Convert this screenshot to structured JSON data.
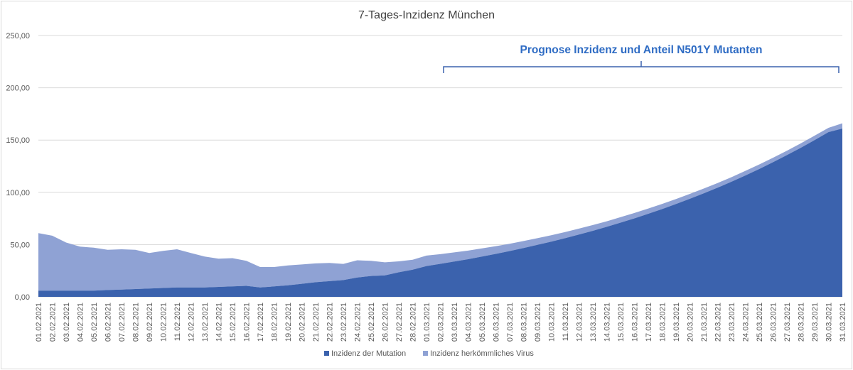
{
  "chart_data": {
    "type": "area",
    "stacked": true,
    "title": "7-Tages-Inzidenz München",
    "annotation": "Prognose Inzidenz und Anteil N501Y Mutanten",
    "xlabel": "",
    "ylabel": "",
    "ylim": [
      0,
      250
    ],
    "yticks": [
      "0,00",
      "50,00",
      "100,00",
      "150,00",
      "200,00",
      "250,00"
    ],
    "grid": true,
    "legend_position": "bottom",
    "categories": [
      "01.02.2021",
      "02.02.2021",
      "03.02.2021",
      "04.02.2021",
      "05.02.2021",
      "06.02.2021",
      "07.02.2021",
      "08.02.2021",
      "09.02.2021",
      "10.02.2021",
      "11.02.2021",
      "12.02.2021",
      "13.02.2021",
      "14.02.2021",
      "15.02.2021",
      "16.02.2021",
      "17.02.2021",
      "18.02.2021",
      "19.02.2021",
      "20.02.2021",
      "21.02.2021",
      "22.02.2021",
      "23.02.2021",
      "24.02.2021",
      "25.02.2021",
      "26.02.2021",
      "27.02.2021",
      "28.02.2021",
      "01.03.2021",
      "02.03.2021",
      "03.03.2021",
      "04.03.2021",
      "05.03.2021",
      "06.03.2021",
      "07.03.2021",
      "08.03.2021",
      "09.03.2021",
      "10.03.2021",
      "11.03.2021",
      "12.03.2021",
      "13.03.2021",
      "14.03.2021",
      "15.03.2021",
      "16.03.2021",
      "17.03.2021",
      "18.03.2021",
      "19.03.2021",
      "20.03.2021",
      "21.03.2021",
      "22.03.2021",
      "23.03.2021",
      "24.03.2021",
      "25.03.2021",
      "26.03.2021",
      "27.03.2021",
      "28.03.2021",
      "29.03.2021",
      "30.03.2021",
      "31.03.2021"
    ],
    "series": [
      {
        "name": "Inzidenz der Mutation",
        "color": "#3b62ad",
        "values": [
          6.0,
          6.0,
          6.0,
          6.0,
          6.0,
          6.5,
          7.0,
          7.5,
          8.0,
          8.5,
          9.0,
          9.0,
          9.0,
          9.5,
          10.0,
          10.5,
          9.0,
          10.0,
          11.0,
          12.5,
          14.0,
          15.0,
          16.0,
          18.5,
          20.0,
          20.5,
          23.5,
          26.0,
          29.5,
          31.6,
          33.8,
          36.0,
          38.5,
          41.1,
          43.8,
          46.7,
          49.7,
          52.8,
          56.1,
          59.6,
          63.2,
          67.0,
          71.0,
          75.1,
          79.5,
          84.0,
          88.8,
          93.8,
          99.0,
          104.4,
          110.1,
          116.1,
          122.3,
          128.8,
          135.6,
          142.6,
          150.0,
          157.6,
          161.0
        ]
      },
      {
        "name": "Inzidenz herkömmliches Virus",
        "color": "#8fa2d4",
        "values": [
          55.0,
          52.5,
          46.0,
          42.0,
          41.0,
          38.5,
          38.5,
          37.5,
          34.0,
          35.5,
          36.5,
          33.0,
          29.5,
          27.0,
          27.0,
          24.0,
          19.5,
          18.5,
          19.0,
          18.5,
          18.0,
          17.5,
          15.5,
          16.5,
          14.5,
          12.5,
          10.5,
          9.5,
          10.0,
          9.2,
          8.7,
          8.2,
          7.8,
          7.4,
          7.0,
          6.7,
          6.4,
          6.1,
          5.9,
          5.7,
          5.5,
          5.3,
          5.2,
          5.1,
          5.0,
          4.9,
          4.8,
          4.7,
          4.6,
          4.5,
          4.4,
          4.4,
          4.3,
          4.3,
          4.2,
          4.2,
          4.2,
          4.1,
          5.0
        ]
      }
    ]
  }
}
